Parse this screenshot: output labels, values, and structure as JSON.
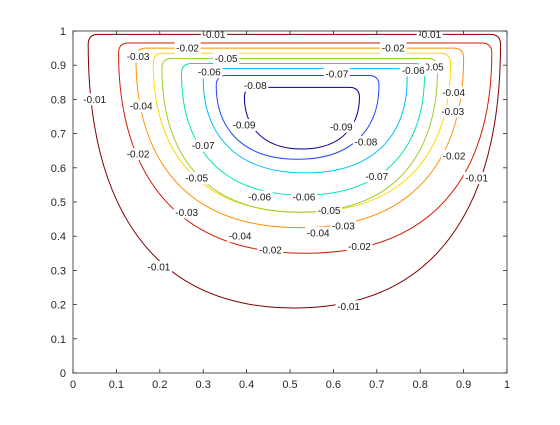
{
  "chart_data": {
    "type": "contour",
    "title": "",
    "xlabel": "",
    "ylabel": "",
    "xlim": [
      0,
      1
    ],
    "ylim": [
      0,
      1
    ],
    "grid": false,
    "x_ticks": [
      "0",
      "0.1",
      "0.2",
      "0.3",
      "0.4",
      "0.5",
      "0.6",
      "0.7",
      "0.8",
      "0.9",
      "1"
    ],
    "y_ticks": [
      "0",
      "0.1",
      "0.2",
      "0.3",
      "0.4",
      "0.5",
      "0.6",
      "0.7",
      "0.8",
      "0.9",
      "1"
    ],
    "levels": [
      {
        "value": -0.01,
        "label": "-0.01",
        "color": "#7f0000",
        "x_range": [
          0.035,
          0.985
        ],
        "y_range": [
          0.19,
          0.99
        ],
        "label_positions": [
          [
            0.325,
            0.99
          ],
          [
            0.822,
            0.99
          ],
          [
            0.05,
            0.8
          ],
          [
            0.93,
            0.57
          ],
          [
            0.198,
            0.31
          ],
          [
            0.635,
            0.195
          ]
        ]
      },
      {
        "value": -0.02,
        "label": "-0.02",
        "color": "#d11c00",
        "x_range": [
          0.105,
          0.965
        ],
        "y_range": [
          0.35,
          0.965
        ],
        "label_positions": [
          [
            0.264,
            0.95
          ],
          [
            0.738,
            0.95
          ],
          [
            0.15,
            0.64
          ],
          [
            0.878,
            0.635
          ],
          [
            0.455,
            0.36
          ],
          [
            0.66,
            0.37
          ]
        ]
      },
      {
        "value": -0.03,
        "label": "-0.03",
        "color": "#ff8c00",
        "x_range": [
          0.145,
          0.9
        ],
        "y_range": [
          0.425,
          0.95
        ],
        "label_positions": [
          [
            0.15,
            0.925
          ],
          [
            0.875,
            0.765
          ],
          [
            0.262,
            0.47
          ],
          [
            0.623,
            0.43
          ]
        ]
      },
      {
        "value": -0.04,
        "label": "-0.04",
        "color": "#ffd700",
        "x_range": [
          0.185,
          0.87
        ],
        "y_range": [
          0.47,
          0.935
        ],
        "label_positions": [
          [
            0.157,
            0.78
          ],
          [
            0.877,
            0.82
          ],
          [
            0.385,
            0.4
          ],
          [
            0.565,
            0.41
          ]
        ]
      },
      {
        "value": -0.05,
        "label": "-0.05",
        "color": "#9acd32",
        "x_range": [
          0.205,
          0.84
        ],
        "y_range": [
          0.47,
          0.92
        ],
        "label_positions": [
          [
            0.353,
            0.92
          ],
          [
            0.828,
            0.895
          ],
          [
            0.285,
            0.57
          ],
          [
            0.59,
            0.475
          ]
        ]
      },
      {
        "value": -0.06,
        "label": "-0.06",
        "color": "#00e5b0",
        "x_range": [
          0.25,
          0.81
        ],
        "y_range": [
          0.52,
          0.905
        ],
        "label_positions": [
          [
            0.314,
            0.88
          ],
          [
            0.784,
            0.885
          ],
          [
            0.43,
            0.515
          ],
          [
            0.532,
            0.515
          ]
        ]
      },
      {
        "value": -0.07,
        "label": "-0.07",
        "color": "#00bfff",
        "x_range": [
          0.3,
          0.77
        ],
        "y_range": [
          0.585,
          0.89
        ],
        "label_positions": [
          [
            0.608,
            0.875
          ],
          [
            0.3,
            0.665
          ],
          [
            0.7,
            0.575
          ]
        ]
      },
      {
        "value": -0.08,
        "label": "-0.08",
        "color": "#1e46ff",
        "x_range": [
          0.33,
          0.705
        ],
        "y_range": [
          0.625,
          0.87
        ],
        "label_positions": [
          [
            0.42,
            0.84
          ],
          [
            0.675,
            0.675
          ]
        ]
      },
      {
        "value": -0.09,
        "label": "-0.09",
        "color": "#00008b",
        "x_range": [
          0.395,
          0.66
        ],
        "y_range": [
          0.655,
          0.835
        ],
        "label_positions": [
          [
            0.394,
            0.725
          ],
          [
            0.618,
            0.72
          ]
        ]
      }
    ]
  }
}
